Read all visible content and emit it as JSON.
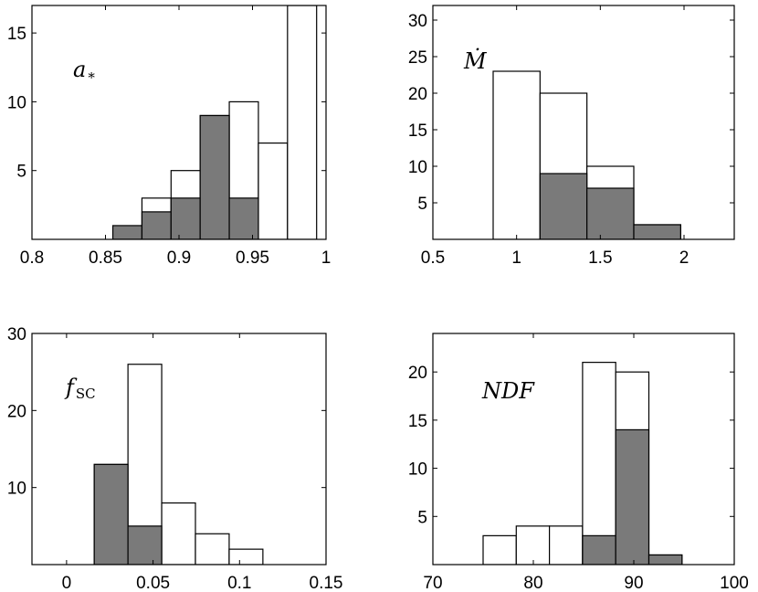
{
  "colors": {
    "filled": "#7a7a7a",
    "open": "#ffffff",
    "axis": "#000000"
  },
  "chart_data": [
    {
      "type": "bar",
      "title": "a",
      "title_sub": "*",
      "xlim": [
        0.8,
        1.0
      ],
      "ylim": [
        0,
        17
      ],
      "xticks": [
        0.8,
        0.85,
        0.9,
        0.95,
        1.0
      ],
      "xtick_labels": [
        "0.8",
        "0.85",
        "0.9",
        "0.95",
        "1"
      ],
      "yticks": [
        5,
        10,
        15
      ],
      "ytick_labels": [
        "5",
        "10",
        "15"
      ],
      "bins": [
        [
          0.855,
          0.8748
        ],
        [
          0.8748,
          0.8946
        ],
        [
          0.8946,
          0.9144
        ],
        [
          0.9144,
          0.9342
        ],
        [
          0.9342,
          0.954
        ],
        [
          0.954,
          0.9738
        ],
        [
          0.9738,
          0.9936
        ],
        [
          0.9936,
          1.0134
        ]
      ],
      "series": [
        {
          "name": "open",
          "values": [
            0,
            3,
            5,
            9,
            10,
            7,
            17,
            0
          ]
        },
        {
          "name": "filled",
          "values": [
            1,
            2,
            3,
            9,
            3,
            0,
            0,
            0
          ]
        }
      ]
    },
    {
      "type": "bar",
      "title": "Ṁ",
      "title_sub": "",
      "xlim": [
        0.5,
        2.3
      ],
      "ylim": [
        0,
        32
      ],
      "xticks": [
        0.5,
        1.0,
        1.5,
        2.0
      ],
      "xtick_labels": [
        "0.5",
        "1",
        "1.5",
        "2"
      ],
      "yticks": [
        5,
        10,
        15,
        20,
        25,
        30
      ],
      "ytick_labels": [
        "5",
        "10",
        "15",
        "20",
        "25",
        "30"
      ],
      "bins": [
        [
          0.86,
          1.14
        ],
        [
          1.14,
          1.42
        ],
        [
          1.42,
          1.7
        ],
        [
          1.7,
          1.98
        ]
      ],
      "series": [
        {
          "name": "open",
          "values": [
            23,
            20,
            10,
            2
          ]
        },
        {
          "name": "filled",
          "values": [
            0,
            9,
            7,
            2
          ]
        }
      ]
    },
    {
      "type": "bar",
      "title": "f",
      "title_sub": "SC",
      "xlim": [
        -0.02,
        0.15
      ],
      "ylim": [
        0,
        30
      ],
      "xticks": [
        0,
        0.05,
        0.1,
        0.15
      ],
      "xtick_labels": [
        "0",
        "0.05",
        "0.1",
        "0.15"
      ],
      "yticks": [
        10,
        20,
        30
      ],
      "ytick_labels": [
        "10",
        "20",
        "30"
      ],
      "bins": [
        [
          0.016,
          0.0355
        ],
        [
          0.0355,
          0.055
        ],
        [
          0.055,
          0.0745
        ],
        [
          0.0745,
          0.094
        ],
        [
          0.094,
          0.1135
        ]
      ],
      "series": [
        {
          "name": "open",
          "values": [
            13,
            26,
            8,
            4,
            2
          ]
        },
        {
          "name": "filled",
          "values": [
            13,
            5,
            0,
            0,
            0
          ]
        }
      ]
    },
    {
      "type": "bar",
      "title": "NDF",
      "title_sub": "",
      "xlim": [
        70,
        100
      ],
      "ylim": [
        0,
        24
      ],
      "xticks": [
        70,
        80,
        90,
        100
      ],
      "xtick_labels": [
        "70",
        "80",
        "90",
        "100"
      ],
      "yticks": [
        5,
        10,
        15,
        20
      ],
      "ytick_labels": [
        "5",
        "10",
        "15",
        "20"
      ],
      "bins": [
        [
          75,
          78.3
        ],
        [
          78.3,
          81.6
        ],
        [
          81.6,
          84.9
        ],
        [
          84.9,
          88.2
        ],
        [
          88.2,
          91.5
        ],
        [
          91.5,
          94.8
        ]
      ],
      "series": [
        {
          "name": "open",
          "values": [
            3,
            4,
            4,
            21,
            20,
            1
          ]
        },
        {
          "name": "filled",
          "values": [
            0,
            0,
            0,
            3,
            14,
            1
          ]
        }
      ]
    }
  ]
}
